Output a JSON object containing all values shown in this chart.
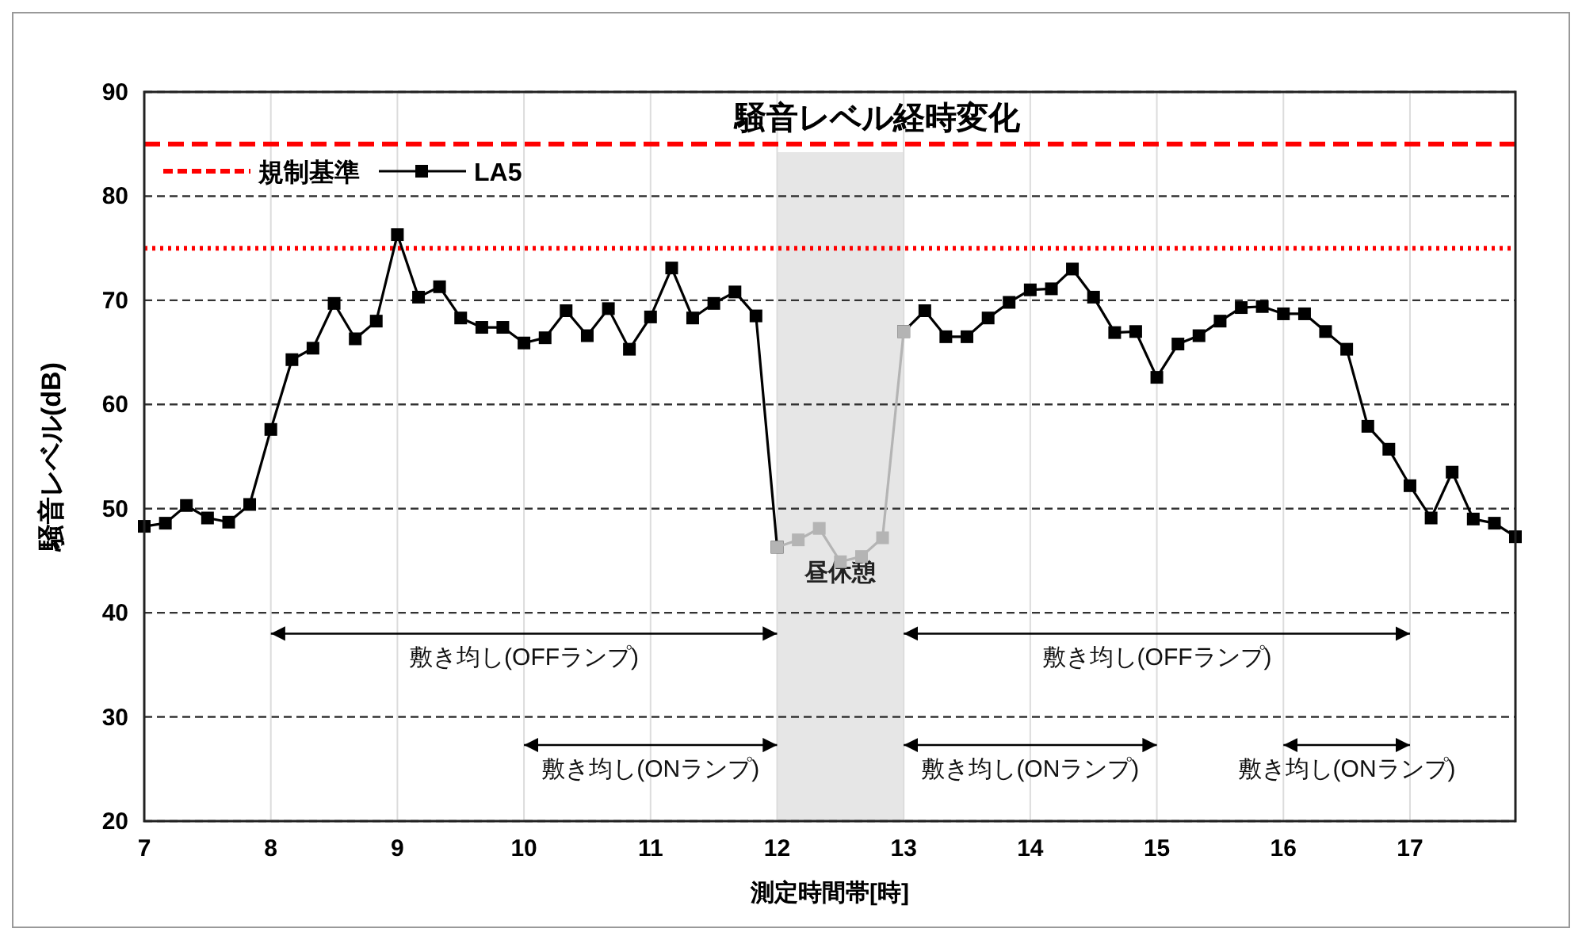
{
  "chart_data": {
    "type": "line",
    "title": "騒音レベル経時変化",
    "xlabel": "測定時間帯[時]",
    "ylabel": "騒音レベル(dB)",
    "xlim": [
      7,
      17.833
    ],
    "xticks": [
      7,
      8,
      9,
      10,
      11,
      12,
      13,
      14,
      15,
      16,
      17
    ],
    "ylim": [
      20,
      90
    ],
    "yticks": [
      20,
      30,
      40,
      50,
      60,
      70,
      80,
      90
    ],
    "grid": true,
    "legend": "top left",
    "marker": "square",
    "line_style": "solid",
    "series": [
      {
        "name": "LA5",
        "color": "#000000",
        "x": [
          7,
          7.167,
          7.333,
          7.5,
          7.667,
          7.833,
          8,
          8.167,
          8.333,
          8.5,
          8.667,
          8.833,
          9,
          9.167,
          9.333,
          9.5,
          9.667,
          9.833,
          10,
          10.167,
          10.333,
          10.5,
          10.667,
          10.833,
          11,
          11.167,
          11.333,
          11.5,
          11.667,
          11.833,
          12
        ],
        "values": [
          48.3,
          48.6,
          50.3,
          49.1,
          48.7,
          50.4,
          57.6,
          64.3,
          65.4,
          69.7,
          66.3,
          68.0,
          76.3,
          70.3,
          71.3,
          68.3,
          67.4,
          67.4,
          65.9,
          66.4,
          69.0,
          66.6,
          69.2,
          65.3,
          68.4,
          73.1,
          68.3,
          69.7,
          70.8,
          68.5,
          46.3
        ]
      },
      {
        "color": "#000000",
        "x": [
          13,
          13.167,
          13.333,
          13.5,
          13.667,
          13.833,
          14,
          14.167,
          14.333,
          14.5,
          14.667,
          14.833,
          15,
          15.167,
          15.333,
          15.5,
          15.667,
          15.833,
          16,
          16.167,
          16.333,
          16.5,
          16.667,
          16.833,
          17,
          17.167,
          17.333,
          17.5,
          17.667,
          17.833
        ],
        "values": [
          67.0,
          69.0,
          66.5,
          66.5,
          68.3,
          69.8,
          71.0,
          71.1,
          73.0,
          70.3,
          66.9,
          67.0,
          62.6,
          65.8,
          66.6,
          68.0,
          69.3,
          69.4,
          68.7,
          68.7,
          67.0,
          65.3,
          57.9,
          55.7,
          52.2,
          49.1,
          53.5,
          49.0,
          48.6,
          47.3
        ]
      },
      {
        "color": "#b4b4b4",
        "x": [
          12,
          12.167,
          12.333,
          12.5,
          12.667,
          12.833,
          13
        ],
        "values": [
          46.3,
          47.0,
          48.1,
          44.9,
          45.4,
          47.2,
          67.0
        ]
      },
      {
        "color": "#000000",
        "marker": "none",
        "x": [
          8,
          12
        ],
        "values": [
          38,
          38
        ]
      },
      {
        "color": "#000000",
        "marker": "none",
        "x": [
          10,
          12
        ],
        "values": [
          27.3,
          27.3
        ]
      },
      {
        "color": "#000000",
        "marker": "none",
        "x": [
          13,
          17
        ],
        "values": [
          38,
          38
        ]
      },
      {
        "color": "#000000",
        "marker": "none",
        "x": [
          13,
          15
        ],
        "values": [
          27.3,
          27.3
        ]
      },
      {
        "color": "#000000",
        "marker": "none",
        "x": [
          16,
          17
        ],
        "values": [
          27.3,
          27.3
        ]
      }
    ],
    "ref_lines": [
      {
        "axis": "y",
        "value": 85,
        "label": "規制基準",
        "color": "#ff0000",
        "line_style": "dashed"
      },
      {
        "axis": "y",
        "value": 75,
        "color": "#ff0000",
        "line_style": "dotted"
      }
    ],
    "bands": [
      {
        "axis": "x",
        "from": 12,
        "to": 13,
        "label": "昼休憩",
        "color": "#e6e6e6"
      }
    ],
    "annotations": [
      "敷き均し(OFFランプ)",
      "敷き均し(ONランプ)",
      "敷き均し(OFFランプ)",
      "敷き均し(ONランプ)",
      "敷き均し(ONランプ)"
    ]
  }
}
